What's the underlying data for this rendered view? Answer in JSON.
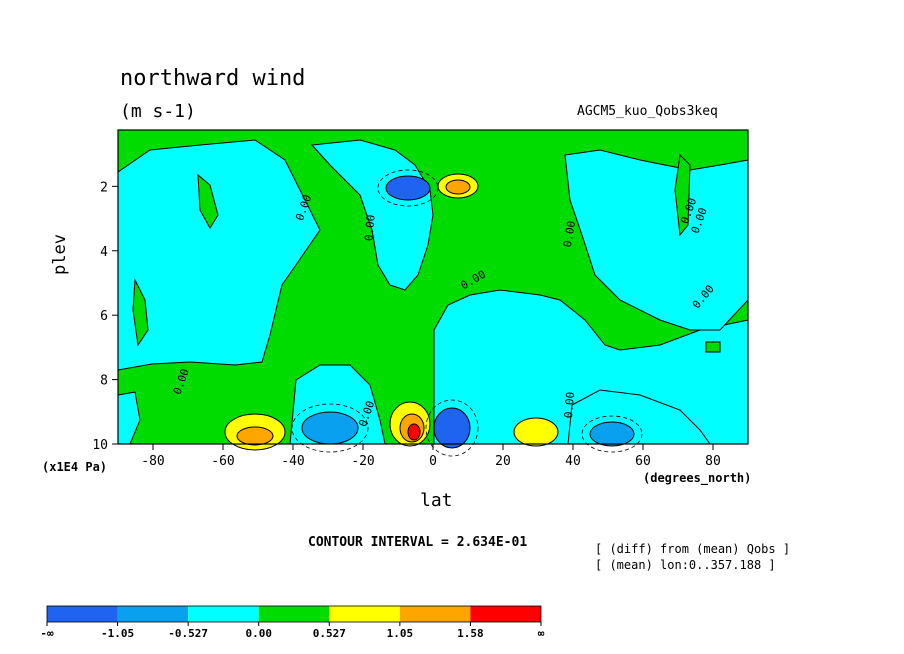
{
  "chart_data": {
    "type": "contour",
    "title": "northward wind",
    "units": "(m s-1)",
    "run_label": "AGCM5_kuo_Qobs3keq",
    "xlabel": "lat",
    "x_unit": "(degrees_north)",
    "ylabel": "plev",
    "y_unit": "(x1E4 Pa)",
    "xlim": [
      -90,
      90
    ],
    "ylim": [
      10,
      0.25
    ],
    "x_ticks": [
      "-80",
      "-60",
      "-40",
      "-20",
      "0",
      "20",
      "40",
      "60",
      "80"
    ],
    "y_ticks": [
      "2",
      "4",
      "6",
      "8",
      "10"
    ],
    "contour_interval_label": "CONTOUR INTERVAL = 2.634E-01",
    "contour_labels": [
      "0.00",
      "0.00",
      "0.00",
      "0.00",
      "0.00",
      "0.00",
      "0.00",
      "0.00",
      "0.00",
      "0.00"
    ],
    "notes": [
      "[ (diff) from (mean) Qobs ]",
      "[ (mean) lon:0..357.188 ]"
    ],
    "colorbar": {
      "colors": [
        "#1e64f0",
        "#0aa0f0",
        "#00ffff",
        "#00dc00",
        "#ffff00",
        "#ffa500",
        "#ff0000"
      ],
      "labels": [
        "-∞",
        "-1.05",
        "-0.527",
        "0.00",
        "0.527",
        "1.05",
        "1.58",
        "∞"
      ]
    }
  }
}
